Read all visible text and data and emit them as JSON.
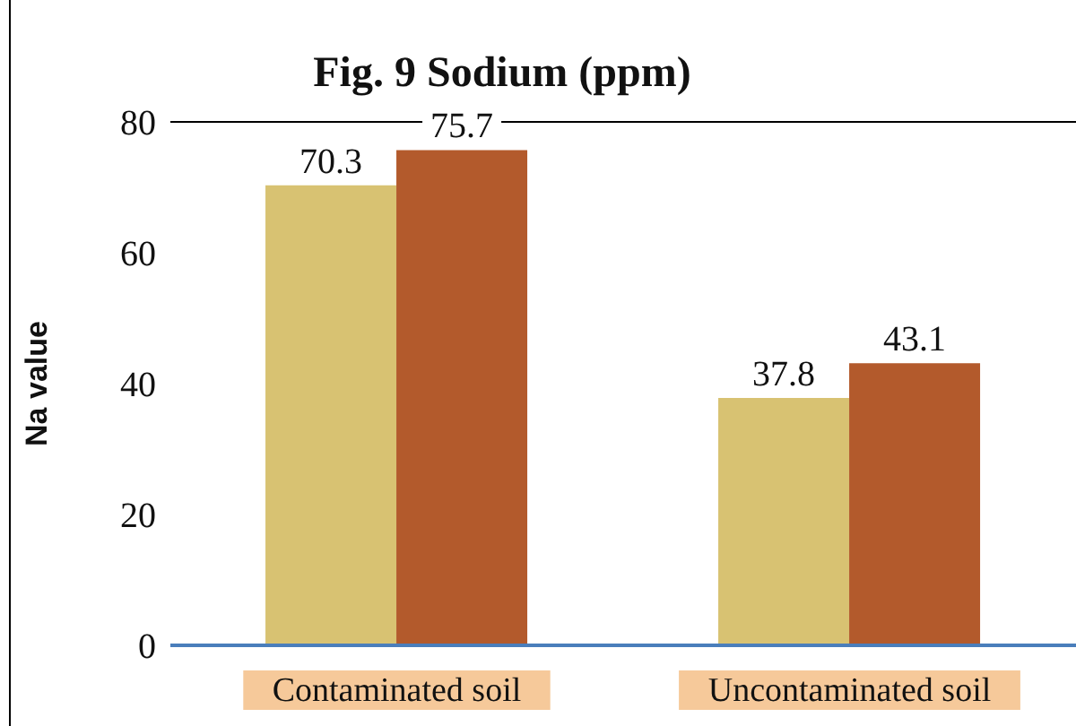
{
  "chart_data": {
    "type": "bar",
    "title": "Fig. 9 Sodium (ppm)",
    "ylabel": "Na value",
    "categories": [
      "Contaminated soil",
      "Uncontaminated soil"
    ],
    "series": [
      {
        "color": "#d8c272",
        "values": [
          70.3,
          37.8
        ]
      },
      {
        "color": "#b35a2c",
        "values": [
          75.7,
          43.1
        ]
      }
    ],
    "ylim": [
      0,
      80
    ],
    "yticks": [
      0,
      20,
      40,
      60,
      80
    ],
    "grid": false,
    "legend": false,
    "data_labels": true
  }
}
